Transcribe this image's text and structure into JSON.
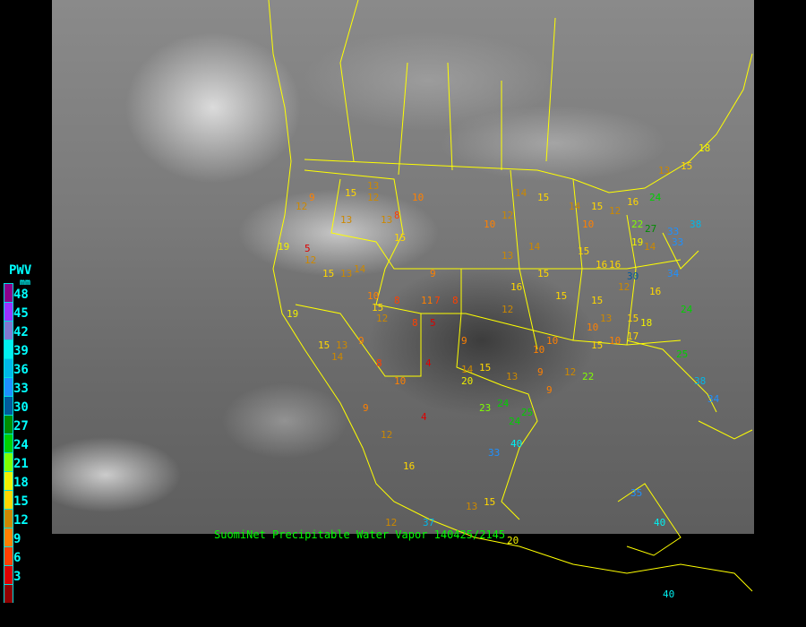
{
  "legend": {
    "title": "PWV",
    "unit": "mm",
    "labels": [
      "48",
      "45",
      "42",
      "39",
      "36",
      "33",
      "30",
      "27",
      "24",
      "21",
      "18",
      "15",
      "12",
      "9",
      "6",
      "3"
    ],
    "colors": [
      "#8b008b",
      "#9933ff",
      "#8078d0",
      "#00f0f0",
      "#00b8e8",
      "#1e90ff",
      "#005a9c",
      "#008c00",
      "#00d000",
      "#80ff00",
      "#f0f000",
      "#ffd700",
      "#cc8800",
      "#ff8000",
      "#ff4000",
      "#dd0000",
      "#900000"
    ]
  },
  "caption": "SuomiNet Precipitable Water Vapor 140425/2145",
  "stations": [
    "12",
    "9",
    "13",
    "15",
    "12",
    "13",
    "8",
    "10",
    "19",
    "12",
    "15",
    "14",
    "13",
    "5",
    "10",
    "19",
    "13",
    "15",
    "14",
    "13",
    "15",
    "8",
    "9",
    "12",
    "8",
    "11",
    "9",
    "15",
    "7",
    "5",
    "8",
    "9",
    "10",
    "14",
    "12",
    "15",
    "13",
    "14",
    "20",
    "16",
    "15",
    "14",
    "15",
    "12",
    "10",
    "13",
    "12",
    "10",
    "10",
    "9",
    "4",
    "15",
    "23",
    "24",
    "24",
    "25",
    "33",
    "40",
    "13",
    "15",
    "16",
    "12",
    "9",
    "4",
    "15",
    "16",
    "14",
    "10",
    "15",
    "15",
    "16",
    "12",
    "15",
    "10",
    "15",
    "17",
    "16",
    "18",
    "19",
    "22",
    "24",
    "27",
    "33",
    "38",
    "34",
    "24",
    "30",
    "22",
    "25",
    "34",
    "38",
    "33",
    "13",
    "15",
    "18",
    "14",
    "16",
    "12",
    "13",
    "9",
    "37",
    "35",
    "40",
    "40",
    "20",
    "12",
    "8",
    "10"
  ]
}
